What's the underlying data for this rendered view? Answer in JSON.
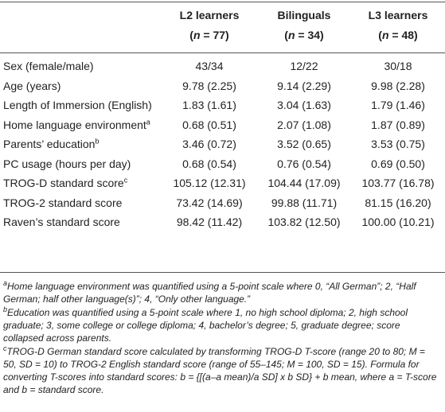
{
  "table": {
    "columns": [
      {
        "name": "L2 learners",
        "n": [
          {
            "text": "("
          },
          {
            "text": "n",
            "italic": true
          },
          {
            "text": " = 77)"
          }
        ]
      },
      {
        "name": "Bilinguals",
        "n": [
          {
            "text": "("
          },
          {
            "text": "n",
            "italic": true
          },
          {
            "text": " = 34)"
          }
        ]
      },
      {
        "name": "L3 learners",
        "n": [
          {
            "text": "("
          },
          {
            "text": "n",
            "italic": true
          },
          {
            "text": " = 48)"
          }
        ]
      }
    ],
    "rows": [
      {
        "label": "Sex (female/male)",
        "values": [
          "43/34",
          "12/22",
          "30/18"
        ]
      },
      {
        "label": "Age (years)",
        "values": [
          "9.78 (2.25)",
          "9.14 (2.29)",
          "9.98 (2.28)"
        ]
      },
      {
        "label": "Length of Immersion (English)",
        "values": [
          "1.83 (1.61)",
          "3.04 (1.63)",
          "1.79 (1.46)"
        ]
      },
      {
        "label": "Home language environment",
        "sup": "a",
        "values": [
          "0.68 (0.51)",
          "2.07 (1.08)",
          "1.87 (0.89)"
        ]
      },
      {
        "label": "Parents’ education",
        "sup": "b",
        "values": [
          "3.46 (0.72)",
          "3.52 (0.65)",
          "3.53 (0.75)"
        ]
      },
      {
        "label": "PC usage (hours per day)",
        "values": [
          "0.68 (0.54)",
          "0.76 (0.54)",
          "0.69 (0.50)"
        ]
      },
      {
        "label": "TROG-D standard score",
        "sup": "c",
        "values": [
          "105.12 (12.31)",
          "104.44 (17.09)",
          "103.77 (16.78)"
        ]
      },
      {
        "label": "TROG-2 standard score",
        "values": [
          "73.42 (14.69)",
          "99.88 (11.71)",
          "81.15 (16.20)"
        ]
      },
      {
        "label": "Raven’s standard score",
        "values": [
          "98.42 (11.42)",
          "103.82 (12.50)",
          "100.00 (10.21)"
        ]
      }
    ],
    "footnotes": [
      {
        "mark": "a",
        "text": "Home language environment was quantified using a 5-point scale where 0, “All German”; 2, “Half German; half other language(s)”; 4, “Only other language.”"
      },
      {
        "mark": "b",
        "text": "Education was quantified using a 5-point scale where 1, no high school diploma; 2, high school graduate; 3, some college or college diploma; 4, bachelor’s degree; 5, graduate degree; score collapsed across parents."
      },
      {
        "mark": "c",
        "text": "TROG-D German standard score calculated by transforming TROG-D T-score (range 20 to 80; M = 50, SD = 10) to TROG-2 English standard score (range of 55–145; M = 100, SD = 15). Formula for converting T-scores into standard scores: b = {[(a–a mean)/a SD] x b SD} + b mean, where a = T-score and b = standard score."
      }
    ]
  }
}
